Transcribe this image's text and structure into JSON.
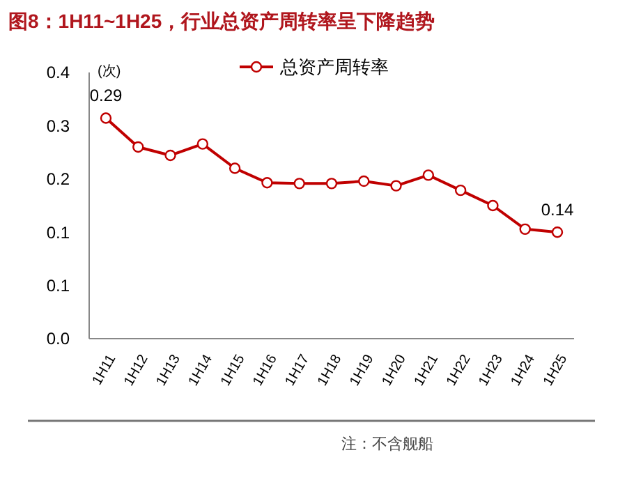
{
  "chart_data": {
    "type": "line",
    "title": "图8：1H11~1H25，行业总资产周转率呈下降趋势",
    "ylabel": "(次)",
    "annotations": [
      "注：不含舰船"
    ],
    "categories": [
      "1H11",
      "1H12",
      "1H13",
      "1H14",
      "1H15",
      "1H16",
      "1H17",
      "1H18",
      "1H19",
      "1H20",
      "1H21",
      "1H22",
      "1H23",
      "1H24",
      "1H25"
    ],
    "series": [
      {
        "name": "总资产周转率",
        "color": "#c00000",
        "values": [
          0.29,
          0.252,
          0.241,
          0.256,
          0.224,
          0.205,
          0.204,
          0.204,
          0.207,
          0.201,
          0.215,
          0.195,
          0.175,
          0.144,
          0.14
        ],
        "value_labels": [
          "0.29",
          null,
          null,
          null,
          null,
          null,
          null,
          null,
          null,
          null,
          null,
          null,
          null,
          null,
          "0.14"
        ]
      }
    ],
    "ylim": [
      0,
      0.35
    ],
    "yticks": [
      {
        "value": 0,
        "label": "0.0"
      },
      {
        "value": 0.07,
        "label": "0.1"
      },
      {
        "value": 0.14,
        "label": "0.1"
      },
      {
        "value": 0.21,
        "label": "0.2"
      },
      {
        "value": 0.28,
        "label": "0.3"
      },
      {
        "value": 0.35,
        "label": "0.4"
      }
    ],
    "grid": false,
    "legend": "top",
    "marker": "circle",
    "line_style": "solid"
  }
}
